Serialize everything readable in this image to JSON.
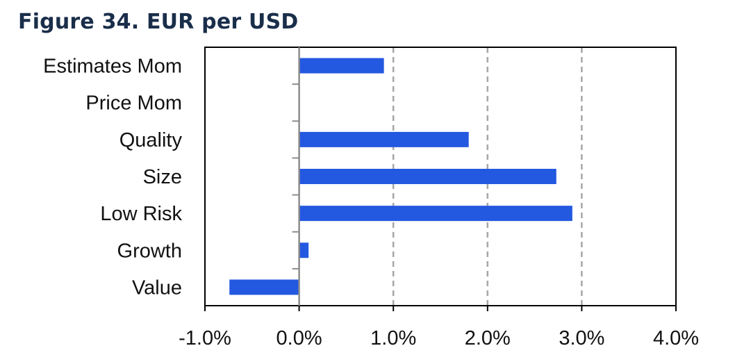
{
  "title": "Figure 34. EUR per USD",
  "chart_data": {
    "type": "bar",
    "orientation": "horizontal",
    "title": "Figure 34. EUR per USD",
    "xlabel": "",
    "ylabel": "",
    "categories": [
      "Estimates Mom",
      "Price Mom",
      "Quality",
      "Size",
      "Low Risk",
      "Growth",
      "Value"
    ],
    "values": [
      0.9,
      0.0,
      1.8,
      2.73,
      2.9,
      0.1,
      -0.74
    ],
    "unit": "%",
    "xlim": [
      -1.0,
      4.0
    ],
    "x_ticks": [
      -1.0,
      0.0,
      1.0,
      2.0,
      3.0,
      4.0
    ],
    "x_tick_labels": [
      "-1.0%",
      "0.0%",
      "1.0%",
      "2.0%",
      "3.0%",
      "4.0%"
    ],
    "grid": "vertical dashed",
    "legend": "none",
    "bar_color": "#2358e0",
    "grid_color": "#a6a6a6",
    "axis_color": "#000000"
  }
}
